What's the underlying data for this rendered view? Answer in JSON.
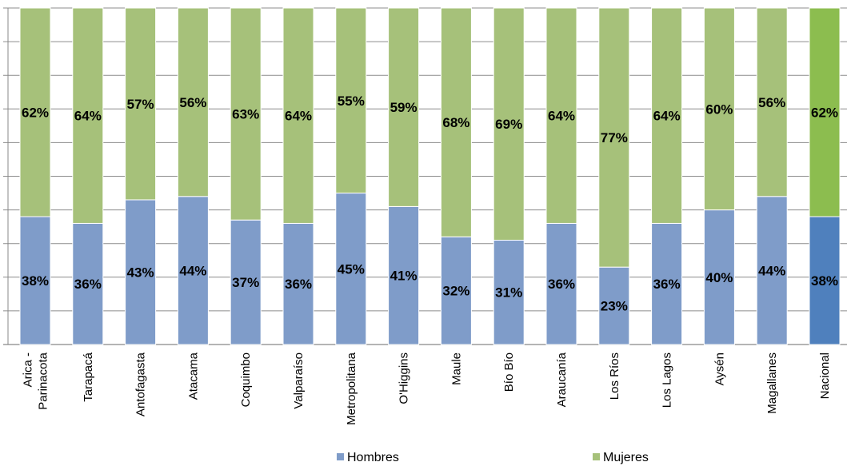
{
  "chart_data": {
    "type": "bar",
    "stacked": true,
    "normalized": true,
    "categories": [
      [
        "Arica -",
        "Parinacota"
      ],
      [
        "Tarapacá"
      ],
      [
        "Antofagasta"
      ],
      [
        "Atacama"
      ],
      [
        "Coquimbo"
      ],
      [
        "Valparaíso"
      ],
      [
        "Metropolitana"
      ],
      [
        "O'Higgins"
      ],
      [
        "Maule"
      ],
      [
        "Bío Bío"
      ],
      [
        "Araucanía"
      ],
      [
        "Los Ríos"
      ],
      [
        "Los Lagos"
      ],
      [
        "Aysén"
      ],
      [
        "Magallanes"
      ],
      [
        "Nacional"
      ]
    ],
    "series": [
      {
        "name": "Hombres",
        "color": "#7f9cc9",
        "highlight_color": "#4f80bd",
        "values": [
          38,
          36,
          43,
          44,
          37,
          36,
          45,
          41,
          32,
          31,
          36,
          23,
          36,
          40,
          44,
          38
        ],
        "labels": [
          "38%",
          "36%",
          "43%",
          "44%",
          "37%",
          "36%",
          "45%",
          "41%",
          "32%",
          "31%",
          "36%",
          "23%",
          "36%",
          "40%",
          "44%",
          "38%"
        ]
      },
      {
        "name": "Mujeres",
        "color": "#a6c17a",
        "highlight_color": "#8cbd4f",
        "values": [
          62,
          64,
          57,
          56,
          63,
          64,
          55,
          59,
          68,
          69,
          64,
          77,
          64,
          60,
          56,
          62
        ],
        "labels": [
          "62%",
          "64%",
          "57%",
          "56%",
          "63%",
          "64%",
          "55%",
          "59%",
          "68%",
          "69%",
          "64%",
          "77%",
          "64%",
          "60%",
          "56%",
          "62%"
        ]
      }
    ],
    "highlight_category": "Nacional",
    "ylim": [
      0,
      100
    ],
    "grid": true,
    "legend": "bottom"
  }
}
